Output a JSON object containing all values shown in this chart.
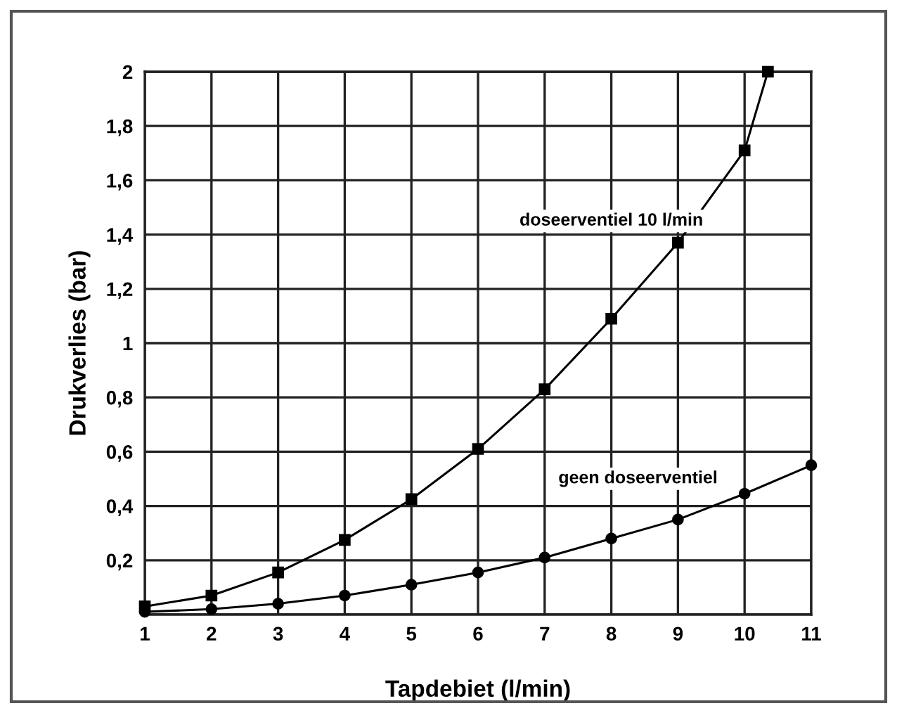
{
  "chart_data": {
    "type": "line",
    "xlabel": "Tapdebiet (l/min)",
    "ylabel": "Drukverlies (bar)",
    "xlim": [
      1,
      11
    ],
    "ylim": [
      0,
      2
    ],
    "xticks": [
      1,
      2,
      3,
      4,
      5,
      6,
      7,
      8,
      9,
      10,
      11
    ],
    "yticks": [
      {
        "value": 0,
        "label": null
      },
      {
        "value": 0.2,
        "label": "0,2"
      },
      {
        "value": 0.4,
        "label": "0,4"
      },
      {
        "value": 0.6,
        "label": "0,6"
      },
      {
        "value": 0.8,
        "label": "0,8"
      },
      {
        "value": 1,
        "label": "1"
      },
      {
        "value": 1.2,
        "label": "1,2"
      },
      {
        "value": 1.4,
        "label": "1,4"
      },
      {
        "value": 1.6,
        "label": "1,6"
      },
      {
        "value": 1.8,
        "label": "1,8"
      },
      {
        "value": 2,
        "label": "2"
      }
    ],
    "grid": true,
    "line_style": "solid",
    "series": [
      {
        "name": "doseerventiel 10 l/min",
        "color": "#000000",
        "marker": "square",
        "x": [
          1,
          2,
          3,
          4,
          5,
          6,
          7,
          8,
          9,
          10,
          10.35
        ],
        "values": [
          0.03,
          0.07,
          0.155,
          0.275,
          0.425,
          0.61,
          0.83,
          1.09,
          1.37,
          1.71,
          2.0
        ]
      },
      {
        "name": "geen doseerventiel",
        "color": "#000000",
        "marker": "circle",
        "x": [
          1,
          2,
          3,
          4,
          5,
          6,
          7,
          8,
          9,
          10,
          11
        ],
        "values": [
          0.01,
          0.02,
          0.04,
          0.07,
          0.11,
          0.155,
          0.21,
          0.28,
          0.35,
          0.445,
          0.55
        ]
      }
    ]
  }
}
